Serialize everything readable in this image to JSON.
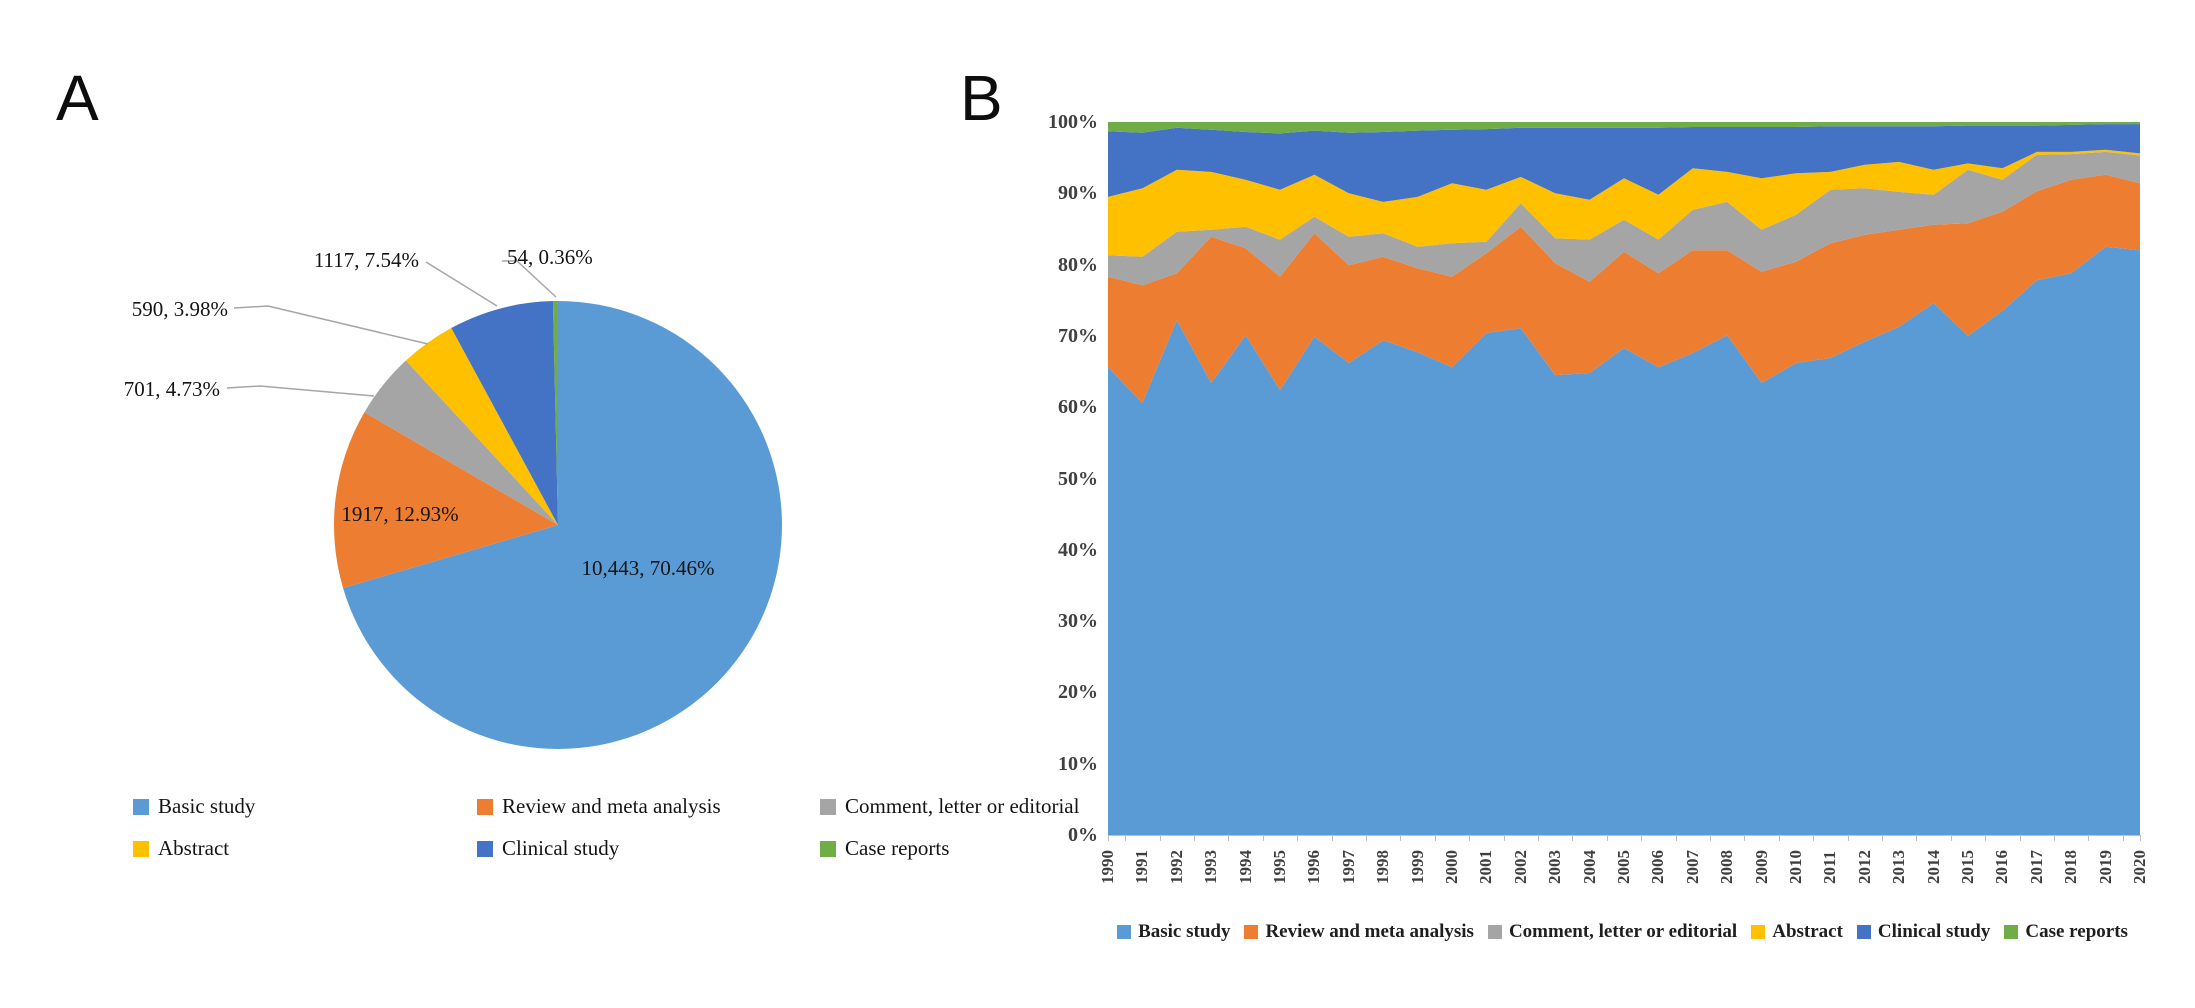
{
  "panel_a": {
    "label": "A",
    "pie": {
      "slices": [
        {
          "name": "Basic study",
          "value": 10443,
          "pct": 70.46,
          "label": "10,443, 70.46%",
          "color": "#5B9BD5"
        },
        {
          "name": "Review and meta analysis",
          "value": 1917,
          "pct": 12.93,
          "label": "1917, 12.93%",
          "color": "#ED7D31"
        },
        {
          "name": "Comment, letter or editorial",
          "value": 701,
          "pct": 4.73,
          "label": "701, 4.73%",
          "color": "#A5A5A5"
        },
        {
          "name": "Abstract",
          "value": 590,
          "pct": 3.98,
          "label": "590, 3.98%",
          "color": "#FFC000"
        },
        {
          "name": "Clinical study",
          "value": 1117,
          "pct": 7.54,
          "label": "1117, 7.54%",
          "color": "#4472C4"
        },
        {
          "name": "Case reports",
          "value": 54,
          "pct": 0.36,
          "label": "54, 0.36%",
          "color": "#70AD47"
        }
      ]
    }
  },
  "panel_b": {
    "label": "B",
    "y_ticks": [
      "0%",
      "10%",
      "20%",
      "30%",
      "40%",
      "50%",
      "60%",
      "70%",
      "80%",
      "90%",
      "100%"
    ],
    "years": [
      "1990",
      "1991",
      "1992",
      "1993",
      "1994",
      "1995",
      "1996",
      "1997",
      "1998",
      "1999",
      "2000",
      "2001",
      "2002",
      "2003",
      "2004",
      "2005",
      "2006",
      "2007",
      "2008",
      "2009",
      "2010",
      "2011",
      "2012",
      "2013",
      "2014",
      "2015",
      "2016",
      "2017",
      "2018",
      "2019",
      "2020"
    ],
    "series": [
      {
        "name": "Basic study",
        "color": "#5B9BD5",
        "values": [
          65.6,
          60.6,
          72.2,
          63.4,
          70.1,
          62.4,
          69.9,
          66.2,
          69.4,
          67.7,
          65.6,
          70.4,
          71.1,
          64.5,
          64.8,
          68.3,
          65.6,
          67.6,
          70.1,
          63.4,
          66.2,
          66.9,
          69.2,
          71.3,
          74.6,
          70.0,
          73.5,
          77.8,
          78.8,
          82.5,
          82.0
        ]
      },
      {
        "name": "Review and meta analysis",
        "color": "#ED7D31",
        "values": [
          12.7,
          16.5,
          6.6,
          20.5,
          12.2,
          15.9,
          14.5,
          13.7,
          11.7,
          11.8,
          12.7,
          11.2,
          14.2,
          15.7,
          12.8,
          13.5,
          13.2,
          14.4,
          11.9,
          15.6,
          14.2,
          16.1,
          15.0,
          13.6,
          11.0,
          15.8,
          13.9,
          12.5,
          13.1,
          10.1,
          9.4
        ]
      },
      {
        "name": "Comment, letter or editorial",
        "color": "#A5A5A5",
        "values": [
          3.0,
          4.0,
          5.8,
          1.0,
          3.0,
          5.2,
          2.3,
          4.0,
          3.3,
          3.0,
          4.7,
          1.6,
          3.3,
          3.5,
          5.9,
          4.5,
          4.7,
          5.7,
          6.8,
          5.9,
          6.6,
          7.5,
          6.5,
          5.3,
          4.2,
          7.5,
          4.5,
          5.1,
          3.6,
          3.2,
          3.9
        ]
      },
      {
        "name": "Abstract",
        "color": "#FFC000",
        "values": [
          8.2,
          9.6,
          8.7,
          8.1,
          6.6,
          7.0,
          5.9,
          6.1,
          4.4,
          7.0,
          8.4,
          7.3,
          3.7,
          6.3,
          5.6,
          5.8,
          6.3,
          5.8,
          4.2,
          7.2,
          5.8,
          2.5,
          3.3,
          4.2,
          3.5,
          0.9,
          1.6,
          0.4,
          0.3,
          0.3,
          0.3
        ]
      },
      {
        "name": "Clinical study",
        "color": "#4472C4",
        "values": [
          9.2,
          7.8,
          5.9,
          5.9,
          6.7,
          7.9,
          6.2,
          8.5,
          9.8,
          9.3,
          7.5,
          8.5,
          6.9,
          9.2,
          10.1,
          7.1,
          9.4,
          5.8,
          6.3,
          7.2,
          6.5,
          6.4,
          5.4,
          5.0,
          6.1,
          5.3,
          6.0,
          3.7,
          3.8,
          3.6,
          4.1
        ]
      },
      {
        "name": "Case reports",
        "color": "#70AD47",
        "values": [
          1.3,
          1.5,
          0.8,
          1.1,
          1.4,
          1.6,
          1.2,
          1.5,
          1.4,
          1.2,
          1.1,
          1.0,
          0.8,
          0.8,
          0.8,
          0.8,
          0.8,
          0.7,
          0.7,
          0.7,
          0.7,
          0.6,
          0.6,
          0.6,
          0.6,
          0.5,
          0.5,
          0.5,
          0.4,
          0.3,
          0.3
        ]
      }
    ]
  },
  "chart_data": [
    {
      "type": "pie",
      "title": "",
      "categories": [
        "Basic study",
        "Review and meta analysis",
        "Comment, letter or editorial",
        "Abstract",
        "Clinical study",
        "Case reports"
      ],
      "values": [
        10443,
        1917,
        701,
        590,
        1117,
        54
      ],
      "percents": [
        70.46,
        12.93,
        4.73,
        3.98,
        7.54,
        0.36
      ],
      "data_labels": [
        "10,443, 70.46%",
        "1917, 12.93%",
        "701, 4.73%",
        "590, 3.98%",
        "1117, 7.54%",
        "54, 0.36%"
      ],
      "legend_position": "bottom"
    },
    {
      "type": "area",
      "subtype": "stacked-100pct",
      "x": [
        1990,
        1991,
        1992,
        1993,
        1994,
        1995,
        1996,
        1997,
        1998,
        1999,
        2000,
        2001,
        2002,
        2003,
        2004,
        2005,
        2006,
        2007,
        2008,
        2009,
        2010,
        2011,
        2012,
        2013,
        2014,
        2015,
        2016,
        2017,
        2018,
        2019,
        2020
      ],
      "series": [
        {
          "name": "Basic study",
          "values": [
            65.6,
            60.6,
            72.2,
            63.4,
            70.1,
            62.4,
            69.9,
            66.2,
            69.4,
            67.7,
            65.6,
            70.4,
            71.1,
            64.5,
            64.8,
            68.3,
            65.6,
            67.6,
            70.1,
            63.4,
            66.2,
            66.9,
            69.2,
            71.3,
            74.6,
            70.0,
            73.5,
            77.8,
            78.8,
            82.5,
            82.0
          ]
        },
        {
          "name": "Review and meta analysis",
          "values": [
            12.7,
            16.5,
            6.6,
            20.5,
            12.2,
            15.9,
            14.5,
            13.7,
            11.7,
            11.8,
            12.7,
            11.2,
            14.2,
            15.7,
            12.8,
            13.5,
            13.2,
            14.4,
            11.9,
            15.6,
            14.2,
            16.1,
            15.0,
            13.6,
            11.0,
            15.8,
            13.9,
            12.5,
            13.1,
            10.1,
            9.4
          ]
        },
        {
          "name": "Comment, letter or editorial",
          "values": [
            3.0,
            4.0,
            5.8,
            1.0,
            3.0,
            5.2,
            2.3,
            4.0,
            3.3,
            3.0,
            4.7,
            1.6,
            3.3,
            3.5,
            5.9,
            4.5,
            4.7,
            5.7,
            6.8,
            5.9,
            6.6,
            7.5,
            6.5,
            5.3,
            4.2,
            7.5,
            4.5,
            5.1,
            3.6,
            3.2,
            3.9
          ]
        },
        {
          "name": "Abstract",
          "values": [
            8.2,
            9.6,
            8.7,
            8.1,
            6.6,
            7.0,
            5.9,
            6.1,
            4.4,
            7.0,
            8.4,
            7.3,
            3.7,
            6.3,
            5.6,
            5.8,
            6.3,
            5.8,
            4.2,
            7.2,
            5.8,
            2.5,
            3.3,
            4.2,
            3.5,
            0.9,
            1.6,
            0.4,
            0.3,
            0.3,
            0.3
          ]
        },
        {
          "name": "Clinical study",
          "values": [
            9.2,
            7.8,
            5.9,
            5.9,
            6.7,
            7.9,
            6.2,
            8.5,
            9.8,
            9.3,
            7.5,
            8.5,
            6.9,
            9.2,
            10.1,
            7.1,
            9.4,
            5.8,
            6.3,
            7.2,
            6.5,
            6.4,
            5.4,
            5.0,
            6.1,
            5.3,
            6.0,
            3.7,
            3.8,
            3.6,
            4.1
          ]
        },
        {
          "name": "Case reports",
          "values": [
            1.3,
            1.5,
            0.8,
            1.1,
            1.4,
            1.6,
            1.2,
            1.5,
            1.4,
            1.2,
            1.1,
            1.0,
            0.8,
            0.8,
            0.8,
            0.8,
            0.8,
            0.7,
            0.7,
            0.7,
            0.7,
            0.6,
            0.6,
            0.6,
            0.6,
            0.5,
            0.5,
            0.5,
            0.4,
            0.3,
            0.3
          ]
        }
      ],
      "xlabel": "",
      "ylabel": "",
      "ylim": [
        0,
        100
      ],
      "y_tick_labels": [
        "0%",
        "10%",
        "20%",
        "30%",
        "40%",
        "50%",
        "60%",
        "70%",
        "80%",
        "90%",
        "100%"
      ],
      "grid": false,
      "legend_position": "bottom"
    }
  ]
}
